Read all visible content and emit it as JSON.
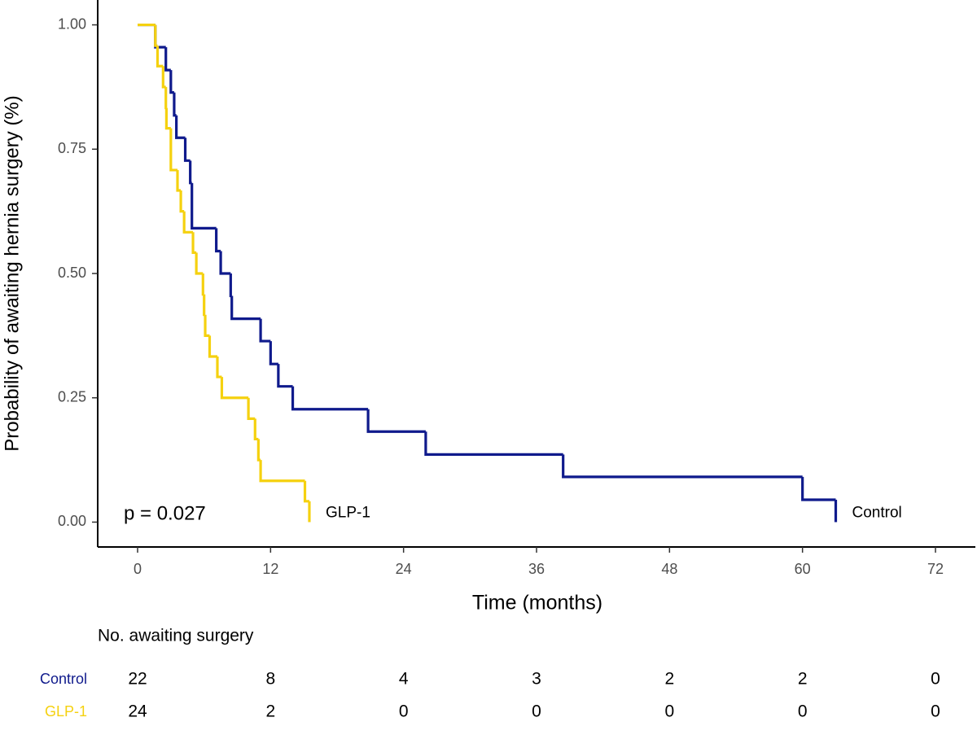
{
  "chart_data": {
    "type": "step",
    "x_label": "Time (months)",
    "y_label": "Probability of awaiting hernia surgery (%)",
    "annotation": "p = 0.027",
    "xlim": [
      -3.6,
      75.6
    ],
    "xticks": [
      0,
      12,
      24,
      36,
      48,
      60,
      72
    ],
    "ylim": [
      -0.05,
      1.05
    ],
    "yticks": [
      {
        "value": 0,
        "label": "0.00"
      },
      {
        "value": 0.25,
        "label": "0.25"
      },
      {
        "value": 0.5,
        "label": "0.50"
      },
      {
        "value": 0.75,
        "label": "0.75"
      },
      {
        "value": 1,
        "label": "1.00"
      }
    ],
    "series": [
      {
        "name": "Control",
        "color": "#0f1a8c",
        "x": [
          0,
          1.6,
          2.55,
          3.0,
          3.3,
          3.5,
          4.3,
          4.75,
          4.9,
          7.1,
          7.5,
          8.4,
          8.5,
          11.1,
          12.0,
          12.7,
          14.0,
          20.8,
          26.0,
          38.4,
          60.0,
          63.0
        ],
        "values": [
          1.0,
          0.955,
          0.909,
          0.864,
          0.818,
          0.773,
          0.727,
          0.682,
          0.591,
          0.545,
          0.5,
          0.455,
          0.409,
          0.364,
          0.318,
          0.273,
          0.227,
          0.182,
          0.136,
          0.091,
          0.045,
          0.0
        ]
      },
      {
        "name": "GLP-1",
        "color": "#f5d10f",
        "x": [
          0,
          1.6,
          1.8,
          2.3,
          2.55,
          2.6,
          3.0,
          3.6,
          3.9,
          4.2,
          5.0,
          5.3,
          5.9,
          6.0,
          6.1,
          6.5,
          7.2,
          7.6,
          10.0,
          10.6,
          10.9,
          11.1,
          15.1,
          15.5
        ],
        "values": [
          1.0,
          0.958,
          0.917,
          0.875,
          0.833,
          0.792,
          0.708,
          0.667,
          0.625,
          0.583,
          0.542,
          0.5,
          0.458,
          0.417,
          0.375,
          0.333,
          0.292,
          0.25,
          0.208,
          0.167,
          0.125,
          0.083,
          0.042,
          0.0
        ]
      }
    ],
    "risk_table": {
      "title": "No. awaiting surgery",
      "rows": [
        [
          22,
          8,
          4,
          3,
          2,
          2,
          0
        ],
        [
          24,
          2,
          0,
          0,
          0,
          0,
          0
        ]
      ]
    }
  }
}
